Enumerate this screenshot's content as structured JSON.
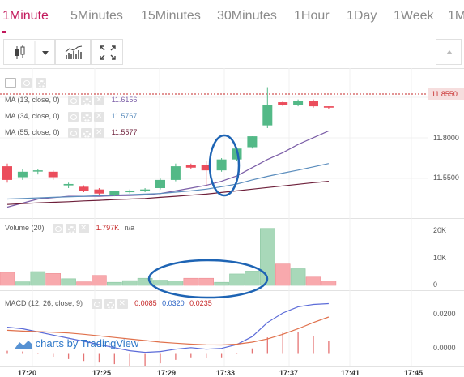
{
  "tabs": [
    {
      "label": "1Minute",
      "active": true
    },
    {
      "label": "5Minutes",
      "active": false
    },
    {
      "label": "15Minutes",
      "active": false
    },
    {
      "label": "30Minutes",
      "active": false
    },
    {
      "label": "1Hour",
      "active": false
    },
    {
      "label": "1Day",
      "active": false
    },
    {
      "label": "1Week",
      "active": false
    },
    {
      "label": "1M",
      "active": false
    }
  ],
  "toolbar": {
    "chart_style_icon": "candlestick-icon",
    "dropdown_icon": "caret-down-icon",
    "indicators_icon": "indicators-icon",
    "fullscreen_icon": "fullscreen-icon",
    "collapse_icon": "caret-up-icon"
  },
  "price_pane": {
    "legends": [
      {
        "label": "MA (13, close, 0)",
        "value": "11.6156"
      },
      {
        "label": "MA (34, close, 0)",
        "value": "11.5767"
      },
      {
        "label": "MA (55, close, 0)",
        "value": "11.5577"
      }
    ],
    "axis_ticks": [
      "11.8000",
      "11.5500"
    ],
    "last_price": "11.8550",
    "last_price_color": "#c62828"
  },
  "volume_pane": {
    "label": "Volume (20)",
    "value": "1.797K",
    "value2": "n/a",
    "axis_ticks": [
      "20K",
      "10K",
      "0"
    ]
  },
  "macd_pane": {
    "label": "MACD (12, 26, close, 9)",
    "values": [
      "0.0085",
      "0.0320",
      "0.0235"
    ],
    "axis_ticks": [
      "0.0200",
      "0.0000"
    ]
  },
  "time_axis": [
    "17:20",
    "17:25",
    "17:29",
    "17:33",
    "17:37",
    "17:41",
    "17:45"
  ],
  "watermark": "charts by TradingView",
  "colors": {
    "up": "#53b987",
    "up_fill": "#a8d8b9",
    "down": "#eb4d5c",
    "down_fill": "#f8a9ad",
    "ma13": "#7b5ea7",
    "ma34": "#5b8dbd",
    "ma55": "#6d1f3a",
    "annotation": "#1e64b4"
  },
  "chart_data": {
    "type": "candlestick",
    "x": [
      "17:20",
      "17:21",
      "17:22",
      "17:23",
      "17:24",
      "17:25",
      "17:26",
      "17:27",
      "17:28",
      "17:29",
      "17:30",
      "17:31",
      "17:32",
      "17:33",
      "17:34",
      "17:35",
      "17:36",
      "17:37",
      "17:38",
      "17:39",
      "17:40",
      "17:41"
    ],
    "candles": [
      {
        "o": 11.64,
        "h": 11.65,
        "l": 11.58,
        "c": 11.59
      },
      {
        "o": 11.6,
        "h": 11.63,
        "l": 11.59,
        "c": 11.62
      },
      {
        "o": 11.625,
        "h": 11.63,
        "l": 11.61,
        "c": 11.625
      },
      {
        "o": 11.62,
        "h": 11.625,
        "l": 11.59,
        "c": 11.6
      },
      {
        "o": 11.57,
        "h": 11.58,
        "l": 11.56,
        "c": 11.575
      },
      {
        "o": 11.565,
        "h": 11.57,
        "l": 11.545,
        "c": 11.55
      },
      {
        "o": 11.555,
        "h": 11.56,
        "l": 11.535,
        "c": 11.54
      },
      {
        "o": 11.535,
        "h": 11.55,
        "l": 11.53,
        "c": 11.55
      },
      {
        "o": 11.545,
        "h": 11.555,
        "l": 11.54,
        "c": 11.55
      },
      {
        "o": 11.55,
        "h": 11.56,
        "l": 11.545,
        "c": 11.555
      },
      {
        "o": 11.56,
        "h": 11.595,
        "l": 11.555,
        "c": 11.59
      },
      {
        "o": 11.59,
        "h": 11.65,
        "l": 11.585,
        "c": 11.64
      },
      {
        "o": 11.645,
        "h": 11.65,
        "l": 11.63,
        "c": 11.635
      },
      {
        "o": 11.645,
        "h": 11.66,
        "l": 11.57,
        "c": 11.625
      },
      {
        "o": 11.625,
        "h": 11.67,
        "l": 11.62,
        "c": 11.665
      },
      {
        "o": 11.665,
        "h": 11.71,
        "l": 11.66,
        "c": 11.705
      },
      {
        "o": 11.71,
        "h": 11.75,
        "l": 11.705,
        "c": 11.75
      },
      {
        "o": 11.79,
        "h": 11.93,
        "l": 11.78,
        "c": 11.865
      },
      {
        "o": 11.875,
        "h": 11.88,
        "l": 11.86,
        "c": 11.865
      },
      {
        "o": 11.865,
        "h": 11.885,
        "l": 11.86,
        "c": 11.88
      },
      {
        "o": 11.88,
        "h": 11.885,
        "l": 11.855,
        "c": 11.86
      },
      {
        "o": 11.86,
        "h": 11.86,
        "l": 11.85,
        "c": 11.855
      }
    ],
    "volume": [
      5.5,
      1.5,
      5.8,
      5.0,
      2.8,
      1.5,
      4.2,
      1.3,
      2.0,
      3.0,
      2.2,
      1.8,
      3.0,
      3.0,
      1.3,
      4.8,
      6.0,
      24.0,
      9.0,
      7.0,
      3.5,
      1.8
    ],
    "ma13": [
      11.49,
      11.505,
      11.52,
      11.525,
      11.53,
      11.53,
      11.53,
      11.532,
      11.533,
      11.535,
      11.54,
      11.55,
      11.56,
      11.57,
      11.585,
      11.605,
      11.635,
      11.665,
      11.69,
      11.72,
      11.745,
      11.77
    ],
    "ma34": [
      11.52,
      11.522,
      11.524,
      11.526,
      11.528,
      11.53,
      11.532,
      11.534,
      11.536,
      11.538,
      11.54,
      11.545,
      11.55,
      11.556,
      11.565,
      11.575,
      11.59,
      11.603,
      11.615,
      11.626,
      11.638,
      11.65
    ],
    "ma55": [
      11.5,
      11.503,
      11.506,
      11.508,
      11.51,
      11.513,
      11.515,
      11.518,
      11.52,
      11.522,
      11.526,
      11.53,
      11.534,
      11.538,
      11.544,
      11.55,
      11.556,
      11.562,
      11.568,
      11.574,
      11.58,
      11.585
    ],
    "macd_line": [
      0.017,
      0.016,
      0.014,
      0.012,
      0.01,
      0.008,
      0.006,
      0.004,
      0.002,
      0.001,
      0.0015,
      0.003,
      0.004,
      0.003,
      0.0035,
      0.006,
      0.011,
      0.02,
      0.026,
      0.03,
      0.0315,
      0.032
    ],
    "signal_line": [
      0.015,
      0.0145,
      0.0142,
      0.0138,
      0.0133,
      0.0125,
      0.0115,
      0.0105,
      0.0095,
      0.0085,
      0.0075,
      0.0068,
      0.0062,
      0.0058,
      0.0057,
      0.0062,
      0.0075,
      0.0095,
      0.0125,
      0.016,
      0.02,
      0.0235
    ],
    "histogram": [
      0.002,
      0.0015,
      -0.0002,
      -0.0018,
      -0.0033,
      -0.0045,
      -0.0055,
      -0.0065,
      -0.0075,
      -0.0075,
      -0.006,
      -0.0038,
      -0.0022,
      -0.0028,
      -0.0022,
      -0.0002,
      0.0035,
      0.0105,
      0.0135,
      0.014,
      0.0115,
      0.0085
    ],
    "price_ylim": [
      11.45,
      12.0
    ],
    "volume_ylim": [
      0,
      28
    ],
    "macd_ylim": [
      -0.008,
      0.04
    ]
  }
}
